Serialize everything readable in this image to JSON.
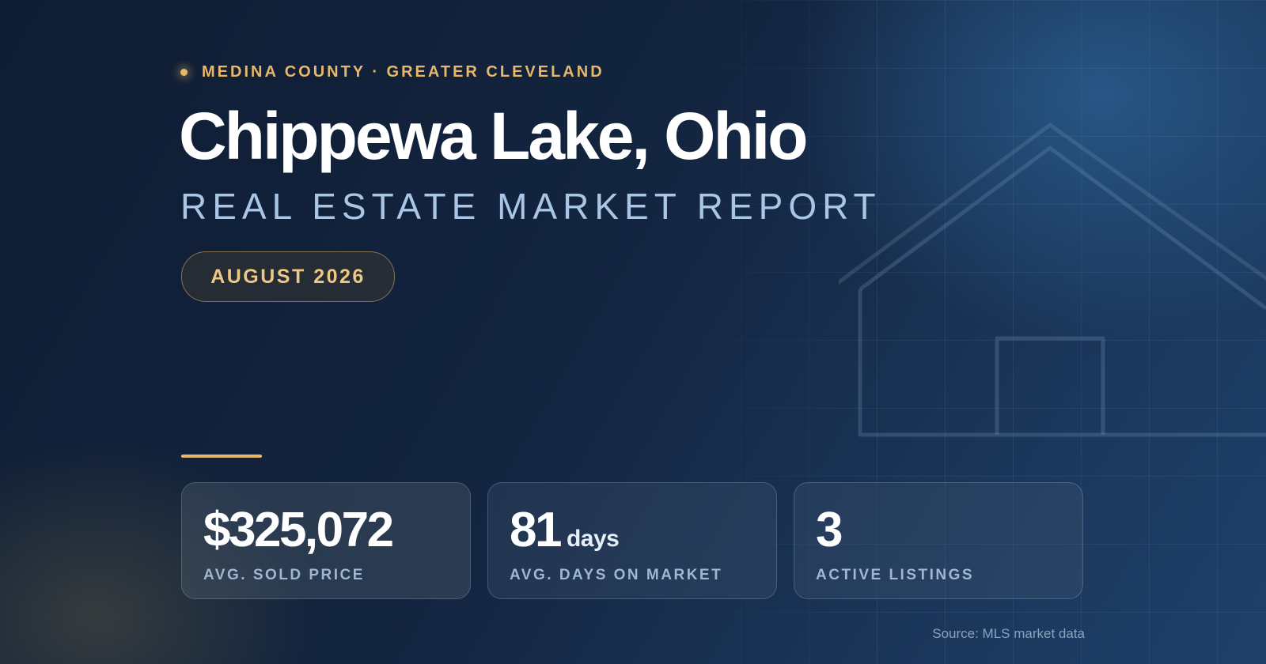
{
  "header": {
    "eyebrow": "MEDINA COUNTY · GREATER CLEVELAND",
    "title": "Chippewa Lake, Ohio",
    "subtitle": "REAL ESTATE MARKET REPORT",
    "date_badge": "AUGUST 2026"
  },
  "stats": [
    {
      "value": "$325,072",
      "unit": "",
      "label": "AVG. SOLD PRICE"
    },
    {
      "value": "81",
      "unit": "days",
      "label": "AVG. DAYS ON MARKET"
    },
    {
      "value": "3",
      "unit": "",
      "label": "ACTIVE LISTINGS"
    }
  ],
  "footer": {
    "source": "Source: MLS market data"
  },
  "colors": {
    "accent_gold": "#e8b86a",
    "subtitle_blue": "#a9c6e6",
    "background_navy": "#13243f"
  },
  "icons": {
    "eyebrow_marker": "dot-icon",
    "background_illustration": "house-outline-icon"
  }
}
